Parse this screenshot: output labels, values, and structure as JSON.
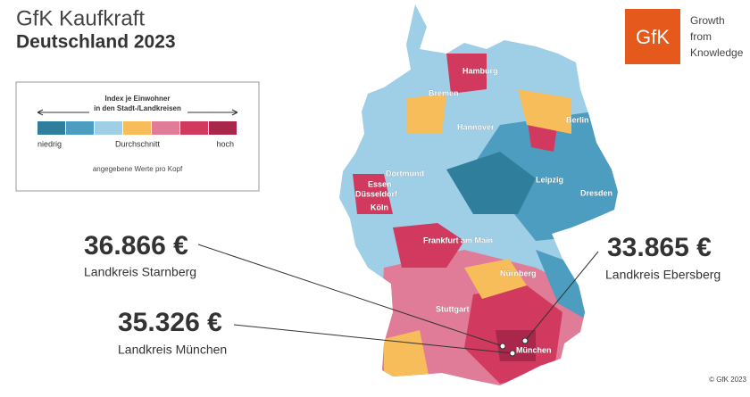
{
  "header": {
    "title": "GfK Kaufkraft",
    "subtitle": "Deutschland 2023"
  },
  "logo": {
    "mark": "GfK",
    "tagline": [
      "Growth",
      "from",
      "Knowledge"
    ],
    "color": "#e55a1c"
  },
  "legend": {
    "title": [
      "Index je Einwohner",
      "in den Stadt-/Landkreisen"
    ],
    "low": "niedrig",
    "mid": "Durchschnitt",
    "high": "hoch",
    "note": "angegebene Werte pro Kopf",
    "colors": [
      "#2f7f9c",
      "#4c9dbf",
      "#9fcfe6",
      "#f6bd5a",
      "#e07b98",
      "#d2395e",
      "#a8274a"
    ]
  },
  "cities": [
    "Hamburg",
    "Bremen",
    "Hannover",
    "Berlin",
    "Dortmund",
    "Essen",
    "Düsseldorf",
    "Köln",
    "Leipzig",
    "Dresden",
    "Frankfurt am Main",
    "Nürnberg",
    "Stuttgart",
    "München"
  ],
  "callouts": [
    {
      "value": "36.866 €",
      "name": "Landkreis Starnberg"
    },
    {
      "value": "35.326 €",
      "name": "Landkreis München"
    },
    {
      "value": "33.865 €",
      "name": "Landkreis Ebersberg"
    }
  ],
  "copyright": "© GfK 2023"
}
